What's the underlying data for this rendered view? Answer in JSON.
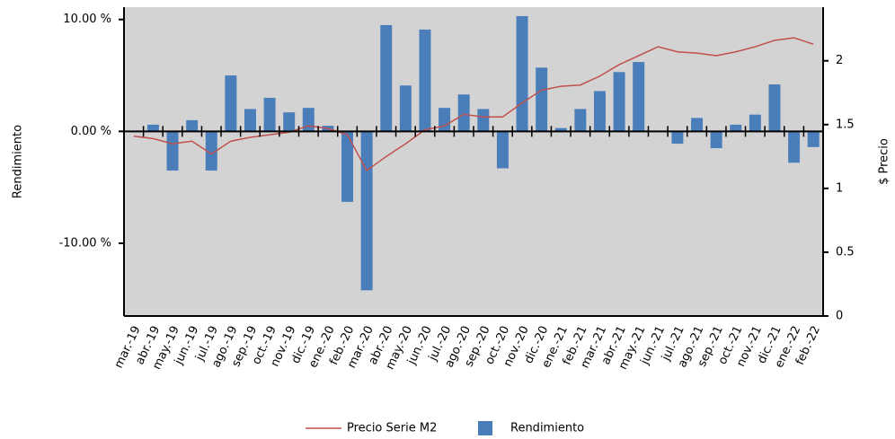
{
  "chart_data": {
    "type": "bar",
    "categories": [
      "mar.-19",
      "abr.-19",
      "may.-19",
      "jun.-19",
      "jul.-19",
      "ago.-19",
      "sep.-19",
      "oct.-19",
      "nov.-19",
      "dic.-19",
      "ene.-20",
      "feb.-20",
      "mar.-20",
      "abr.-20",
      "may.-20",
      "jun.-20",
      "jul.-20",
      "ago.-20",
      "sep.-20",
      "oct.-20",
      "nov.-20",
      "dic.-20",
      "ene.-21",
      "feb.-21",
      "mar.-21",
      "abr.-21",
      "may.-21",
      "jun.-21",
      "jul.-21",
      "ago.-21",
      "sep.-21",
      "oct.-21",
      "nov.-21",
      "dic.-21",
      "ene.-22",
      "feb.-22"
    ],
    "series": [
      {
        "name": "Precio Serie M2",
        "type": "line",
        "axis": "y2",
        "color": "#c0504d",
        "values": [
          1.41,
          1.39,
          1.35,
          1.37,
          1.27,
          1.37,
          1.4,
          1.42,
          1.44,
          1.49,
          1.47,
          1.42,
          1.14,
          1.25,
          1.35,
          1.46,
          1.49,
          1.58,
          1.56,
          1.56,
          1.67,
          1.77,
          1.8,
          1.81,
          1.88,
          1.97,
          2.04,
          2.11,
          2.07,
          2.06,
          2.04,
          2.07,
          2.11,
          2.16,
          2.18,
          2.13
        ]
      },
      {
        "name": "Rendimiento",
        "type": "bar",
        "color": "#4a7ebb",
        "values": [
          0,
          0.6,
          -3.5,
          1.0,
          -3.5,
          5.0,
          2.0,
          3.0,
          1.7,
          2.1,
          0.5,
          -6.3,
          -14.2,
          9.5,
          4.1,
          9.1,
          2.1,
          3.3,
          2.0,
          -3.3,
          10.3,
          5.7,
          0.3,
          2.0,
          3.6,
          5.3,
          6.2,
          0,
          -1.1,
          1.2,
          -1.5,
          0.6,
          1.5,
          4.2,
          -2.8,
          -1.4
        ]
      }
    ],
    "ylabel": "Rendimiento",
    "y2label": "$ Precio",
    "ylim": [
      -16.5,
      11.1
    ],
    "yticks": [
      {
        "value": -10,
        "label": "-10.00 %"
      },
      {
        "value": 0,
        "label": "0.00 %"
      },
      {
        "value": 10,
        "label": "10.00 %"
      }
    ],
    "y2lim": [
      0,
      2.42
    ],
    "y2ticks": [
      0,
      0.5,
      1,
      1.5,
      2
    ],
    "legend": "bottom"
  }
}
